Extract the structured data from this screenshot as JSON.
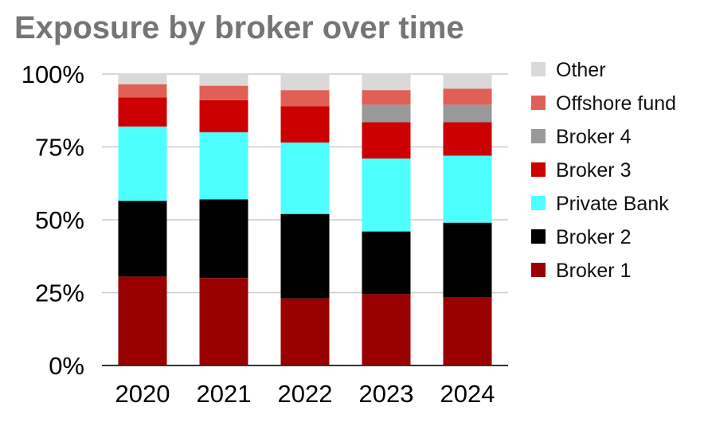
{
  "chart_data": {
    "type": "bar",
    "stacked": true,
    "percent": true,
    "title": "Exposure by broker over time",
    "categories": [
      "2020",
      "2021",
      "2022",
      "2023",
      "2024"
    ],
    "ylim": [
      0,
      100
    ],
    "yticks": [
      "0%",
      "25%",
      "50%",
      "75%",
      "100%"
    ],
    "grid": true,
    "legend_position": "right",
    "series": [
      {
        "name": "Broker 1",
        "color": "#990000",
        "values": [
          30.5,
          30,
          23,
          24.5,
          23.5
        ]
      },
      {
        "name": "Broker 2",
        "color": "#000000",
        "values": [
          26,
          27,
          29,
          21.5,
          25.5
        ]
      },
      {
        "name": "Private Bank",
        "color": "#4dffff",
        "values": [
          25.5,
          23,
          24.5,
          25,
          23
        ]
      },
      {
        "name": "Broker 3",
        "color": "#cc0000",
        "values": [
          10,
          11,
          12.5,
          12.5,
          11.5
        ]
      },
      {
        "name": "Broker 4",
        "color": "#999999",
        "values": [
          0,
          0,
          0,
          6,
          6
        ]
      },
      {
        "name": "Offshore fund",
        "color": "#e06055",
        "values": [
          4.5,
          5,
          5.5,
          5,
          5.5
        ]
      },
      {
        "name": "Other",
        "color": "#d9d9d9",
        "values": [
          3.5,
          4,
          5.5,
          5.5,
          5
        ]
      }
    ]
  }
}
